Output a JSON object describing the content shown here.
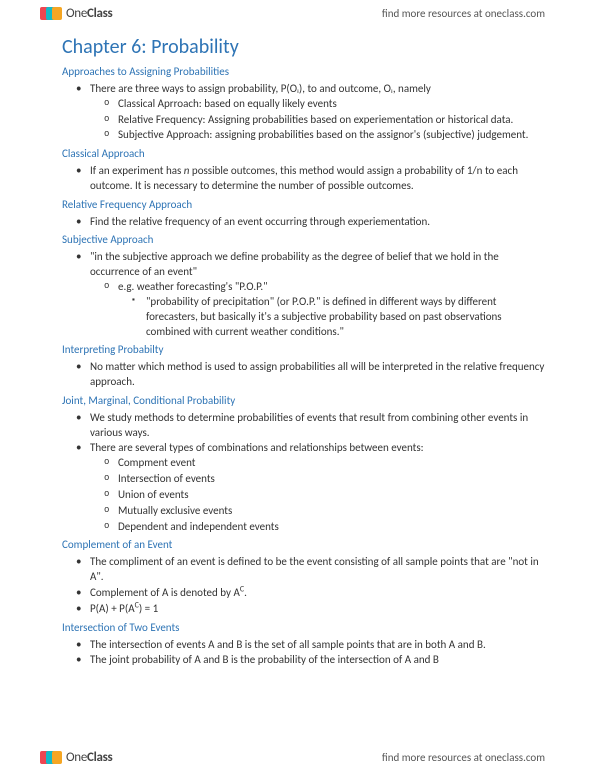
{
  "brand": {
    "name_part1": "One",
    "name_part2": "Class",
    "sheet_colors": [
      "#ef4551",
      "#15b8c7",
      "#f5a623"
    ],
    "resources_text": "find more resources at oneclass.com"
  },
  "colors": {
    "heading": "#2e74b5",
    "body_text": "#333333",
    "background": "#ffffff"
  },
  "chapter_title": "Chapter 6: Probability",
  "sections": [
    {
      "heading": "Approaches to Assigning Probabilities",
      "items": [
        {
          "text": "There are three ways to assign probability, P(Oᵢ), to and outcome, Oᵢ, namely",
          "sub": [
            {
              "text": "Classical Aprroach: based on equally likely events"
            },
            {
              "text": "Relative Frequency: Assigning probabilities based on experiementation or historical data."
            },
            {
              "text": "Subjective Approach: assigning probabilities based on the assignor's (subjective) judgement."
            }
          ]
        }
      ]
    },
    {
      "heading": "Classical Approach",
      "items": [
        {
          "text": "If an experiment has ",
          "italic": "n",
          "text2": " possible outcomes, this method would assign a probability of 1/n to each outcome. It is necessary to determine the number of possible outcomes."
        }
      ]
    },
    {
      "heading": "Relative Frequency Approach",
      "items": [
        {
          "text": "Find the relative frequency of an event occurring through experiementation."
        }
      ]
    },
    {
      "heading": "Subjective Approach",
      "items": [
        {
          "text": "\"in the subjective approach we define probability as the degree of belief that we hold in the occurrence of an event\"",
          "sub": [
            {
              "text": "e.g. weather forecasting's \"P.O.P.\"",
              "sub": [
                {
                  "text": "\"probability of precipitation\" (or P.O.P.\" is defined in different ways by different forecasters, but basically it's a subjective probability based on past observations combined with current weather conditions.\""
                }
              ]
            }
          ]
        }
      ]
    },
    {
      "heading": "Interpreting Probabilty",
      "items": [
        {
          "text": "No matter which method is used to assign probabilities all will be interpreted in the relative frequency approach."
        }
      ]
    },
    {
      "heading": "Joint, Marginal, Conditional Probability",
      "items": [
        {
          "text": "We study methods to determine probabilities of events that result from combining other events in various ways."
        },
        {
          "text": "There are several types of combinations and relationships between events:",
          "sub": [
            {
              "text": "Compment event"
            },
            {
              "text": "Intersection of events"
            },
            {
              "text": "Union of events"
            },
            {
              "text": "Mutually exclusive events"
            },
            {
              "text": "Dependent and independent events"
            }
          ]
        }
      ]
    },
    {
      "heading": "Complement of an Event",
      "items": [
        {
          "text": "The compliment of an event is defined to be the event consisting of all sample points that are \"not in A\"."
        },
        {
          "text": "Complement of A is denoted by A",
          "sup": "C",
          "text2": "."
        },
        {
          "text": "P(A) + P(A",
          "sup": "C",
          "text2": ") = 1"
        }
      ]
    },
    {
      "heading": "Intersection of Two Events",
      "items": [
        {
          "text": "The intersection of events A and B is the set of all sample points that are in both A and B."
        },
        {
          "text": "The joint probability of A and B is the probability of the intersection of A and B"
        }
      ]
    }
  ]
}
